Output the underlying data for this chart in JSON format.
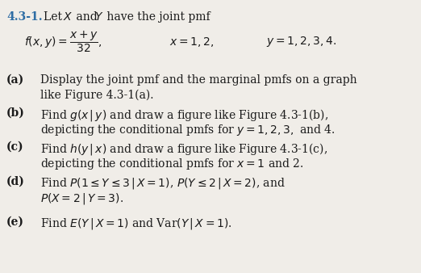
{
  "background_color": "#f0ede8",
  "font_size": 10.0,
  "text_color": "#1a1a1a",
  "title_color": "#2e6da4",
  "items": [
    {
      "label": "(a)",
      "line1": "Display the joint pmf and the marginal pmfs on a graph",
      "line2": "like Figure 4.3-1(a)."
    },
    {
      "label": "(b)",
      "line1": "Find $g(x\\,|\\,y)$ and draw a figure like Figure 4.3-1(b),",
      "line2": "depicting the conditional pmfs for $y = 1, 2, 3,$ and 4."
    },
    {
      "label": "(c)",
      "line1": "Find $h(y\\,|\\,x)$ and draw a figure like Figure 4.3-1(c),",
      "line2": "depicting the conditional pmfs for $x = 1$ and 2."
    },
    {
      "label": "(d)",
      "line1": "Find $P(1 \\leq Y \\leq 3\\,|\\,X = 1)$, $P(Y \\leq 2\\,|\\,X = 2)$, and",
      "line2": "$P(X = 2\\,|\\,Y = 3)$."
    },
    {
      "label": "(e)",
      "line1": "Find $E(Y\\,|\\,X = 1)$ and Var$(Y\\,|\\,X = 1)$.",
      "line2": null
    }
  ]
}
